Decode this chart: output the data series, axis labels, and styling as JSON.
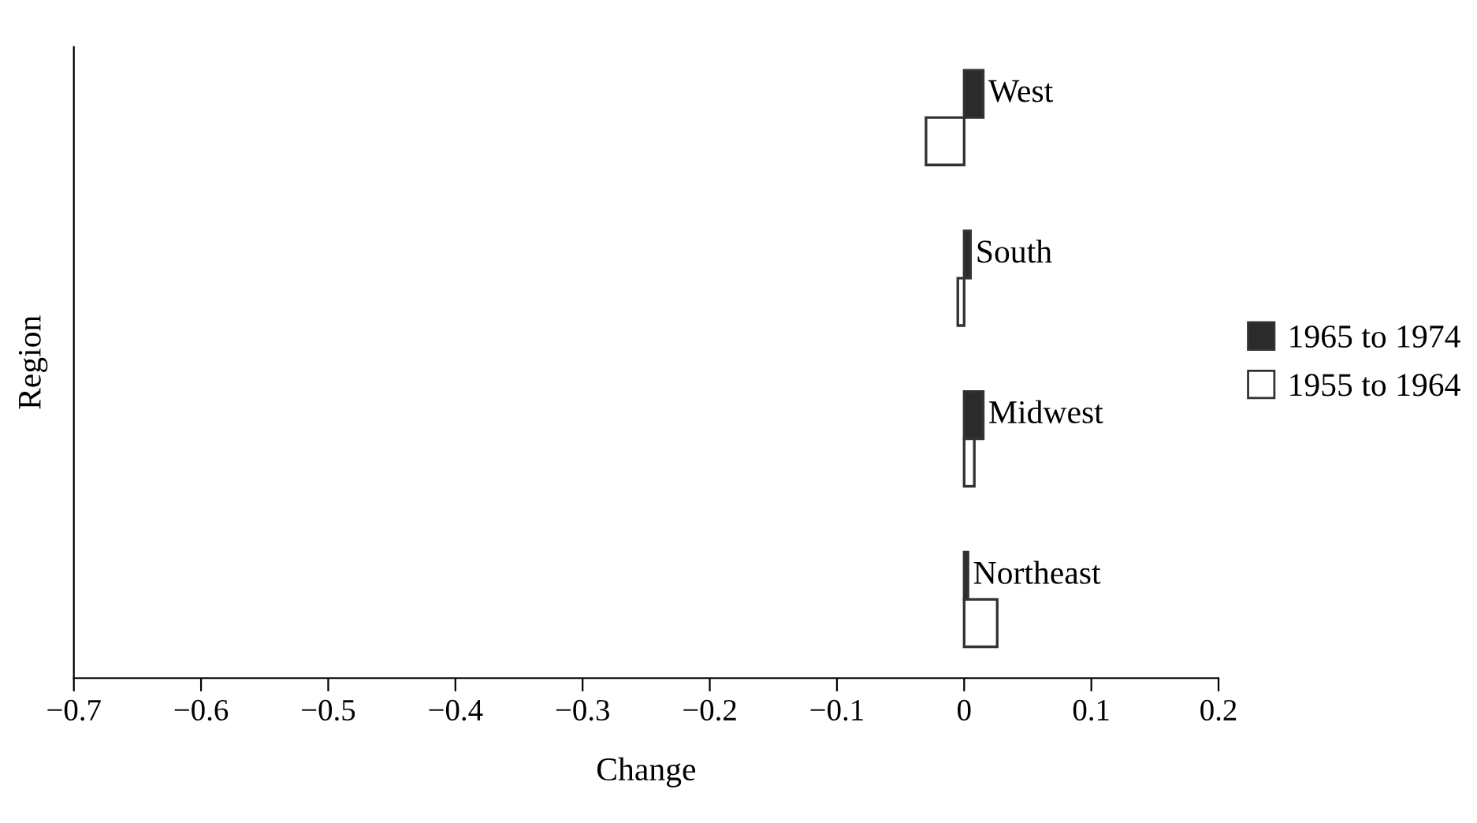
{
  "chart_data": {
    "type": "bar",
    "orientation": "horizontal",
    "xlabel": "Change",
    "ylabel": "Region",
    "categories": [
      "West",
      "South",
      "Midwest",
      "Northeast"
    ],
    "series": [
      {
        "name": "1965 to 1974",
        "color": "#2b2b2b",
        "values": [
          0.015,
          0.005,
          0.015,
          0.003
        ]
      },
      {
        "name": "1955 to 1964",
        "color": "#ffffff",
        "values": [
          -0.03,
          -0.005,
          0.008,
          0.026
        ]
      }
    ],
    "xlim": [
      -0.7,
      0.2
    ],
    "xticks": [
      {
        "value": -0.7,
        "label": "−0.7"
      },
      {
        "value": -0.6,
        "label": "−0.6"
      },
      {
        "value": -0.5,
        "label": "−0.5"
      },
      {
        "value": -0.4,
        "label": "−0.4"
      },
      {
        "value": -0.3,
        "label": "−0.3"
      },
      {
        "value": -0.2,
        "label": "−0.2"
      },
      {
        "value": -0.1,
        "label": "−0.1"
      },
      0,
      0.1,
      0.2
    ],
    "tick_labels": "x",
    "grid": false,
    "legend": "right"
  }
}
